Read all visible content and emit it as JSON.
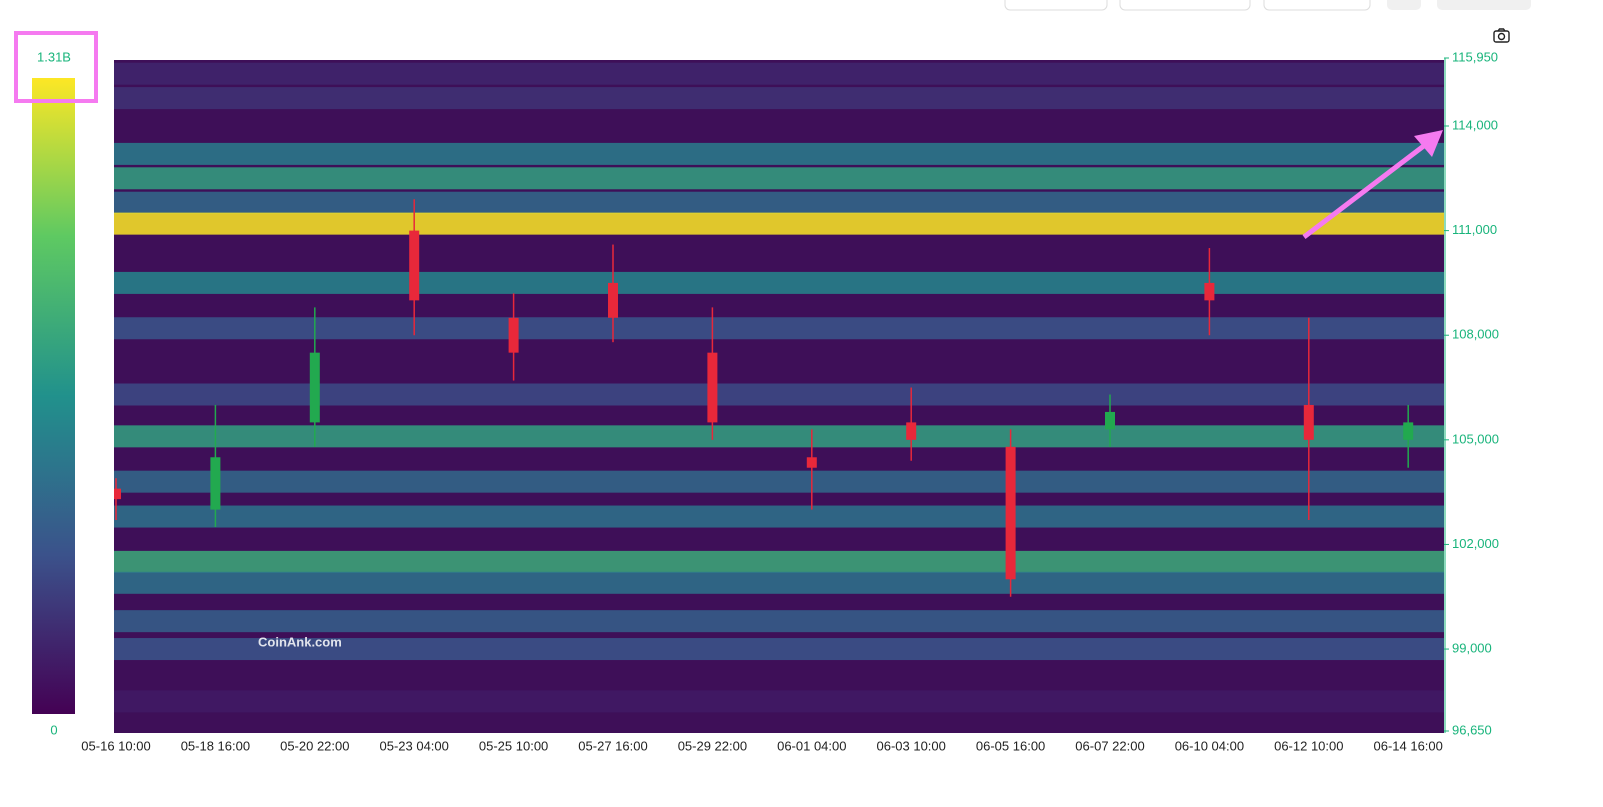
{
  "chart_data": {
    "type": "heatmap",
    "watermark": "CoinAnk.com",
    "colorbar": {
      "clim": [
        0,
        1310000000
      ],
      "ticks": [
        {
          "value": 1310000000,
          "label": "1.31B"
        },
        0
      ]
    },
    "ylim": [
      96650,
      115950
    ],
    "yticks": [
      {
        "value": 96650,
        "label": "96,650"
      },
      {
        "value": 99000,
        "label": "99,000"
      },
      {
        "value": 102000,
        "label": "102,000"
      },
      {
        "value": 105000,
        "label": "105,000"
      },
      {
        "value": 108000,
        "label": "108,000"
      },
      {
        "value": 111000,
        "label": "111,000"
      },
      {
        "value": 114000,
        "label": "114,000"
      },
      {
        "value": 115950,
        "label": "115,950"
      }
    ],
    "categories": [
      "05-16 10:00",
      "05-18 16:00",
      "05-20 22:00",
      "05-23 04:00",
      "05-25 10:00",
      "05-27 16:00",
      "05-29 22:00",
      "06-01 04:00",
      "06-03 10:00",
      "06-05 16:00",
      "06-07 22:00",
      "06-10 04:00",
      "06-12 10:00",
      "06-14 16:00"
    ],
    "heatmap": {
      "prices": [
        115500,
        114800,
        113200,
        112500,
        111800,
        111200,
        109500,
        108200,
        106300,
        105100,
        103800,
        102800,
        101500,
        100900,
        99800,
        99000,
        97500
      ],
      "values": [
        150000000,
        200000000,
        550000000,
        750000000,
        450000000,
        1310000000,
        600000000,
        350000000,
        300000000,
        750000000,
        450000000,
        500000000,
        800000000,
        500000000,
        400000000,
        350000000,
        100000000
      ]
    },
    "candles": {
      "open": [
        103600,
        103000,
        105500,
        111000,
        108500,
        109500,
        107500,
        104500,
        105500,
        104800,
        105300,
        109500,
        106000,
        105000
      ],
      "close": [
        103300,
        104500,
        107500,
        109000,
        107500,
        108500,
        105500,
        104200,
        105000,
        101000,
        105800,
        109000,
        105000,
        105500
      ],
      "high": [
        103900,
        106000,
        108800,
        111900,
        109200,
        110600,
        108800,
        105300,
        106500,
        105300,
        106300,
        110500,
        108500,
        106000
      ],
      "low": [
        102700,
        102500,
        104800,
        108000,
        106700,
        107800,
        105000,
        103000,
        104400,
        100500,
        104800,
        108000,
        102700,
        104200
      ],
      "up_color": "#22a94f",
      "down_color": "#e8283a"
    }
  }
}
